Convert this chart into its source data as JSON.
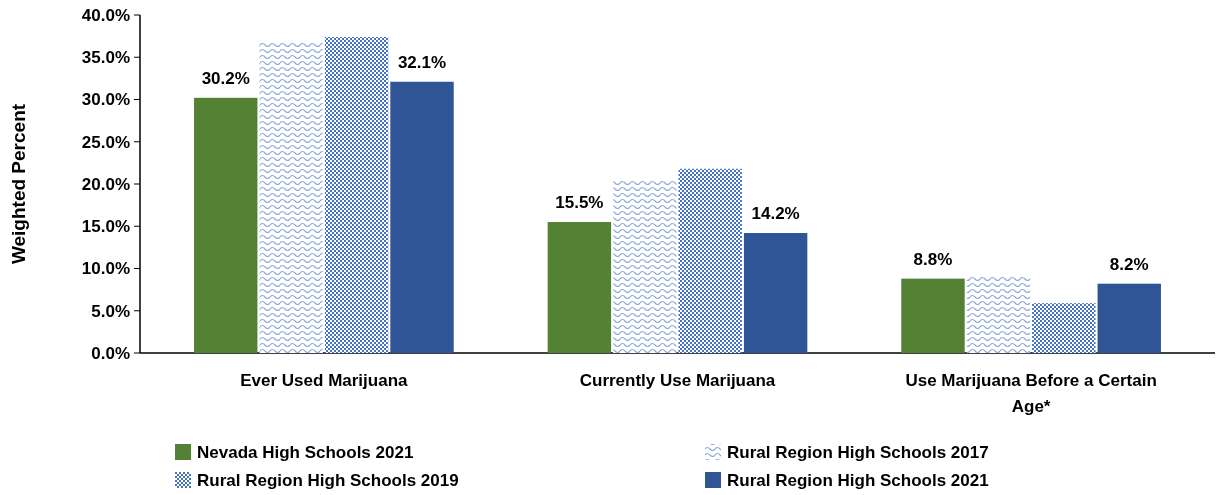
{
  "chart_data": {
    "type": "bar",
    "ylabel": "Weighted Percent",
    "categories": [
      "Ever Used Marijuana",
      "Currently Use Marijuana",
      "Use Marijuana Before a Certain Age*"
    ],
    "series": [
      {
        "name": "Nevada High Schools 2021",
        "color": "#548235",
        "values": [
          30.2,
          15.5,
          8.8
        ],
        "value_labels": [
          "30.2%",
          "15.5%",
          "8.8%"
        ]
      },
      {
        "name": "Rural Region High Schools 2017",
        "color": "#8fa9dc",
        "values": [
          36.8,
          20.4,
          9.1
        ]
      },
      {
        "name": "Rural Region High Schools 2019",
        "color": "#4472c4",
        "values": [
          37.4,
          21.8,
          5.9
        ]
      },
      {
        "name": "Rural Region High Schools 2021",
        "color": "#2f5597",
        "values": [
          32.1,
          14.2,
          8.2
        ],
        "value_labels": [
          "32.1%",
          "14.2%",
          "8.2%"
        ]
      }
    ],
    "ylim": [
      0,
      40
    ],
    "yticks": [
      {
        "value": 0,
        "label": "0.0%"
      },
      {
        "value": 5,
        "label": "5.0%"
      },
      {
        "value": 10,
        "label": "10.0%"
      },
      {
        "value": 15,
        "label": "15.0%"
      },
      {
        "value": 20,
        "label": "20.0%"
      },
      {
        "value": 25,
        "label": "25.0%"
      },
      {
        "value": 30,
        "label": "30.0%"
      },
      {
        "value": 35,
        "label": "35.0%"
      },
      {
        "value": 40,
        "label": "40.0%"
      }
    ],
    "grid": false,
    "legend": "bottom"
  }
}
